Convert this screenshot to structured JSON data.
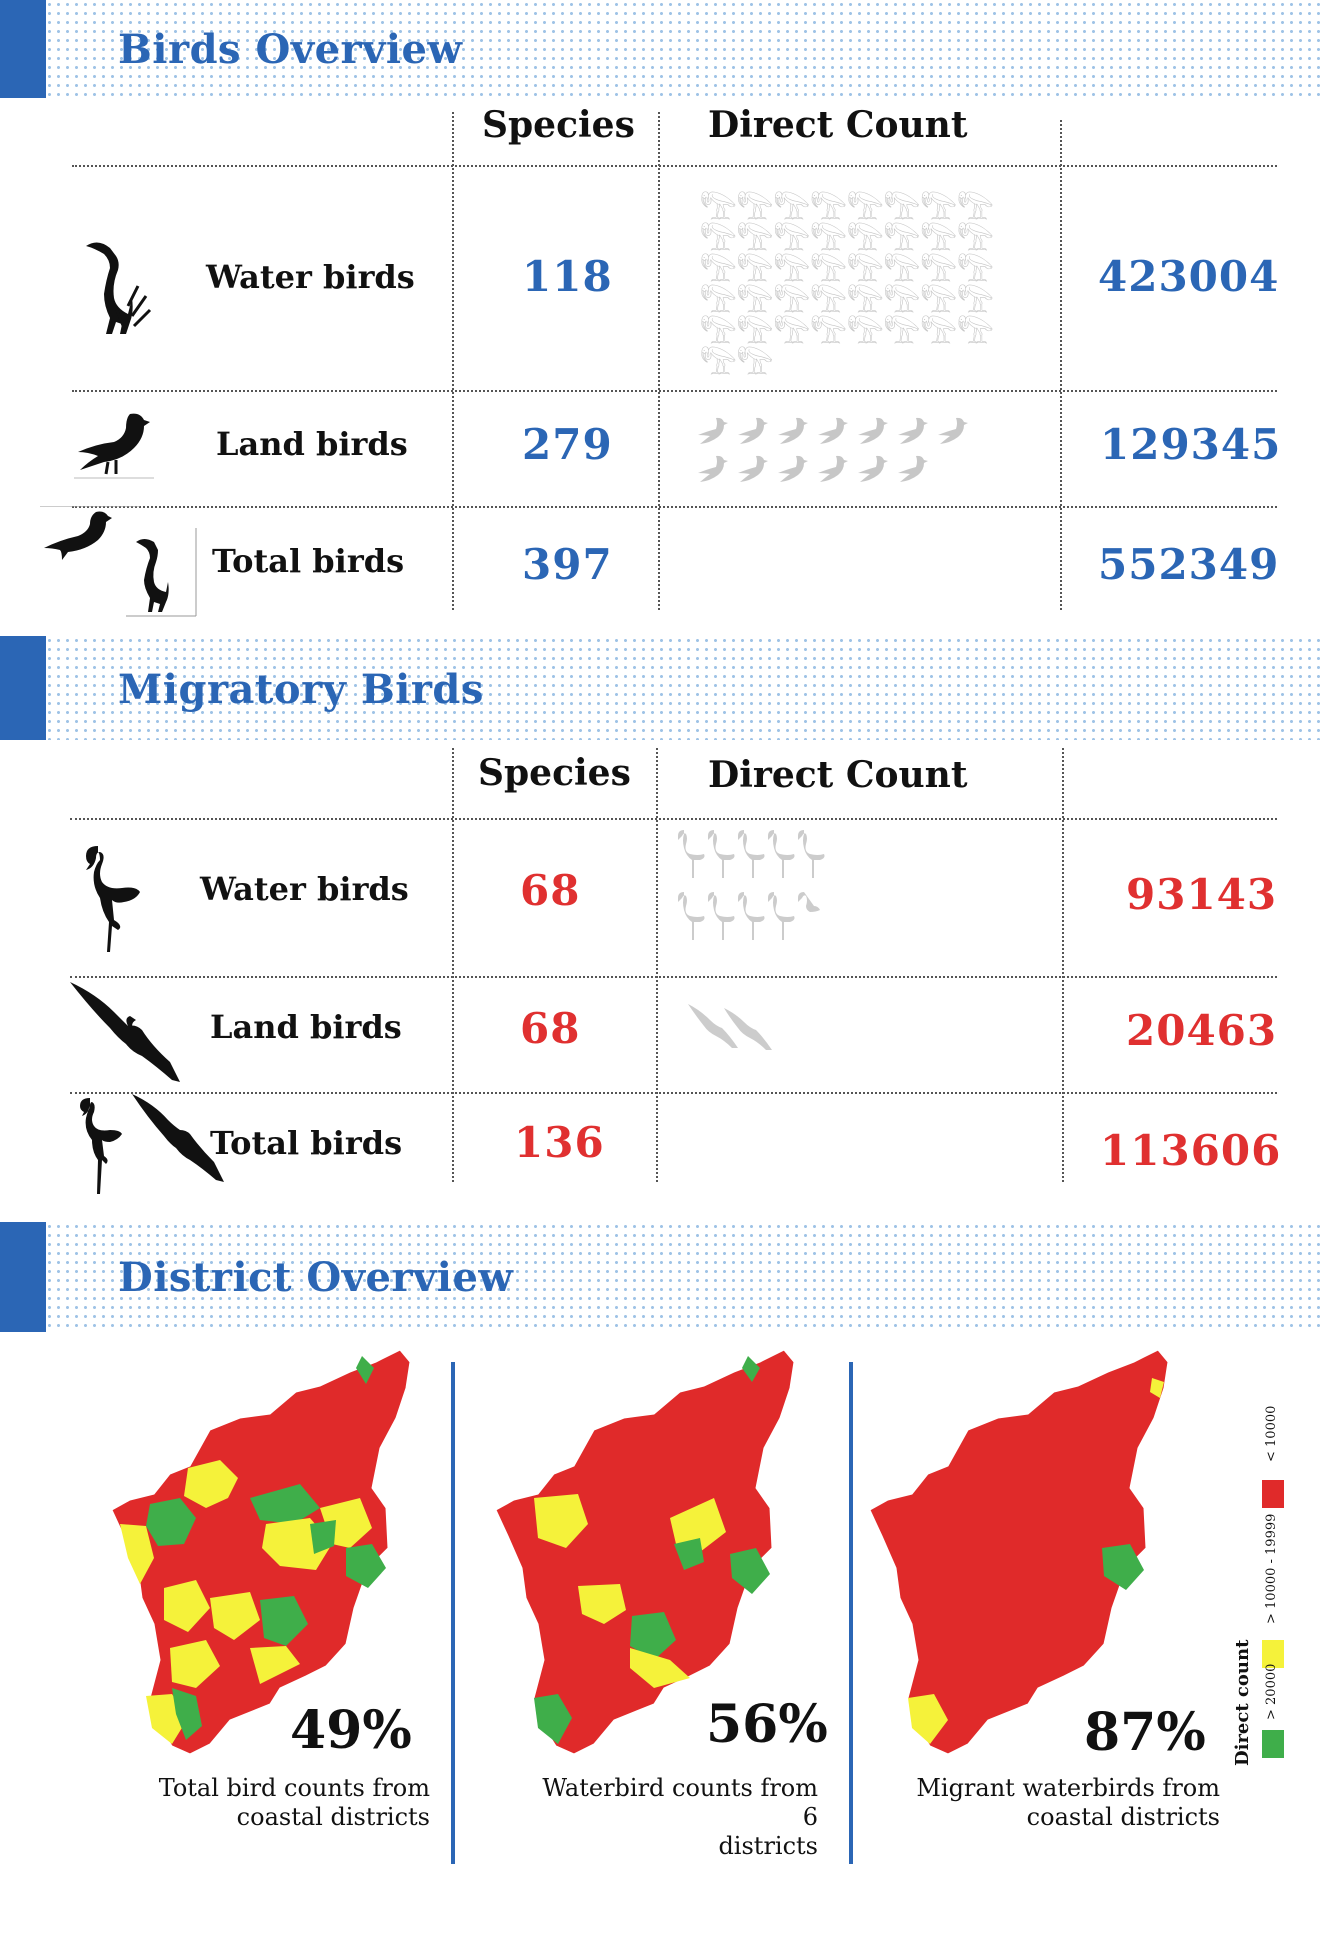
{
  "birds_overview": {
    "title": "Birds Overview",
    "headers": {
      "species": "Species",
      "direct_count": "Direct Count"
    },
    "rows": [
      {
        "label": "Water birds",
        "species": "118",
        "count": "423004",
        "icon": "heron-icon"
      },
      {
        "label": "Land birds",
        "species": "279",
        "count": "129345",
        "icon": "pigeon-icon"
      },
      {
        "label": "Total birds",
        "species": "397",
        "count": "552349",
        "icon": "pigeon-and-heron-icon"
      }
    ]
  },
  "migratory_birds": {
    "title": "Migratory Birds",
    "headers": {
      "species": "Species",
      "direct_count": "Direct Count"
    },
    "rows": [
      {
        "label": "Water birds",
        "species": "68",
        "count": "93143",
        "icon": "flamingo-icon"
      },
      {
        "label": "Land birds",
        "species": "68",
        "count": "20463",
        "icon": "eagle-icon"
      },
      {
        "label": "Total birds",
        "species": "136",
        "count": "113606",
        "icon": "flamingo-and-eagle-icon"
      }
    ]
  },
  "district_overview": {
    "title": "District Overview",
    "maps": [
      {
        "percent": "49%",
        "caption_line1": "Total bird counts from",
        "caption_line2": "coastal districts"
      },
      {
        "percent": "56%",
        "caption_line1": "Waterbird counts from 6",
        "caption_line2": "districts"
      },
      {
        "percent": "87%",
        "caption_line1": "Migrant waterbirds  from",
        "caption_line2": "coastal districts"
      }
    ],
    "legend": {
      "title": "Direct count",
      "items": [
        {
          "label": "< 10000",
          "color": "#e02a2a"
        },
        {
          "label": "> 10000 - 19999",
          "color": "#f5f23a"
        },
        {
          "label": "> 20000",
          "color": "#3fae4a"
        }
      ]
    }
  },
  "colors": {
    "accent_blue": "#2b66b5",
    "accent_red": "#e03030",
    "map_red": "#e02a2a",
    "map_yellow": "#f5f23a",
    "map_green": "#3fae4a"
  }
}
